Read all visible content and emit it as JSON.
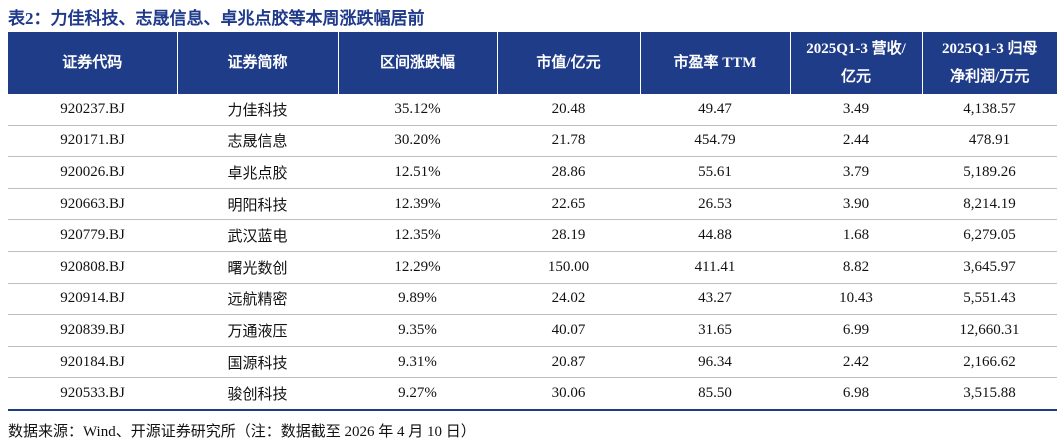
{
  "header": {
    "title": "表2：力佳科技、志晟信息、卓兆点胶等本周涨跌幅居前"
  },
  "table": {
    "columns": [
      [
        "证券代码"
      ],
      [
        "证券简称"
      ],
      [
        "区间涨跌幅"
      ],
      [
        "市值/亿元"
      ],
      [
        "市盈率 TTM"
      ],
      [
        "2025Q1-3 营收/",
        "亿元"
      ],
      [
        "2025Q1-3 归母",
        "净利润/万元"
      ]
    ],
    "rows": [
      [
        "920237.BJ",
        "力佳科技",
        "35.12%",
        "20.48",
        "49.47",
        "3.49",
        "4,138.57"
      ],
      [
        "920171.BJ",
        "志晟信息",
        "30.20%",
        "21.78",
        "454.79",
        "2.44",
        "478.91"
      ],
      [
        "920026.BJ",
        "卓兆点胶",
        "12.51%",
        "28.86",
        "55.61",
        "3.79",
        "5,189.26"
      ],
      [
        "920663.BJ",
        "明阳科技",
        "12.39%",
        "22.65",
        "26.53",
        "3.90",
        "8,214.19"
      ],
      [
        "920779.BJ",
        "武汉蓝电",
        "12.35%",
        "28.19",
        "44.88",
        "1.68",
        "6,279.05"
      ],
      [
        "920808.BJ",
        "曙光数创",
        "12.29%",
        "150.00",
        "411.41",
        "8.82",
        "3,645.97"
      ],
      [
        "920914.BJ",
        "远航精密",
        "9.89%",
        "24.02",
        "43.27",
        "10.43",
        "5,551.43"
      ],
      [
        "920839.BJ",
        "万通液压",
        "9.35%",
        "40.07",
        "31.65",
        "6.99",
        "12,660.31"
      ],
      [
        "920184.BJ",
        "国源科技",
        "9.31%",
        "20.87",
        "96.34",
        "2.42",
        "2,166.62"
      ],
      [
        "920533.BJ",
        "骏创科技",
        "9.27%",
        "30.06",
        "85.50",
        "6.98",
        "3,515.88"
      ]
    ]
  },
  "footer": {
    "source": "数据来源：Wind、开源证券研究所（注：数据截至 2026 年 4 月 10 日）"
  }
}
